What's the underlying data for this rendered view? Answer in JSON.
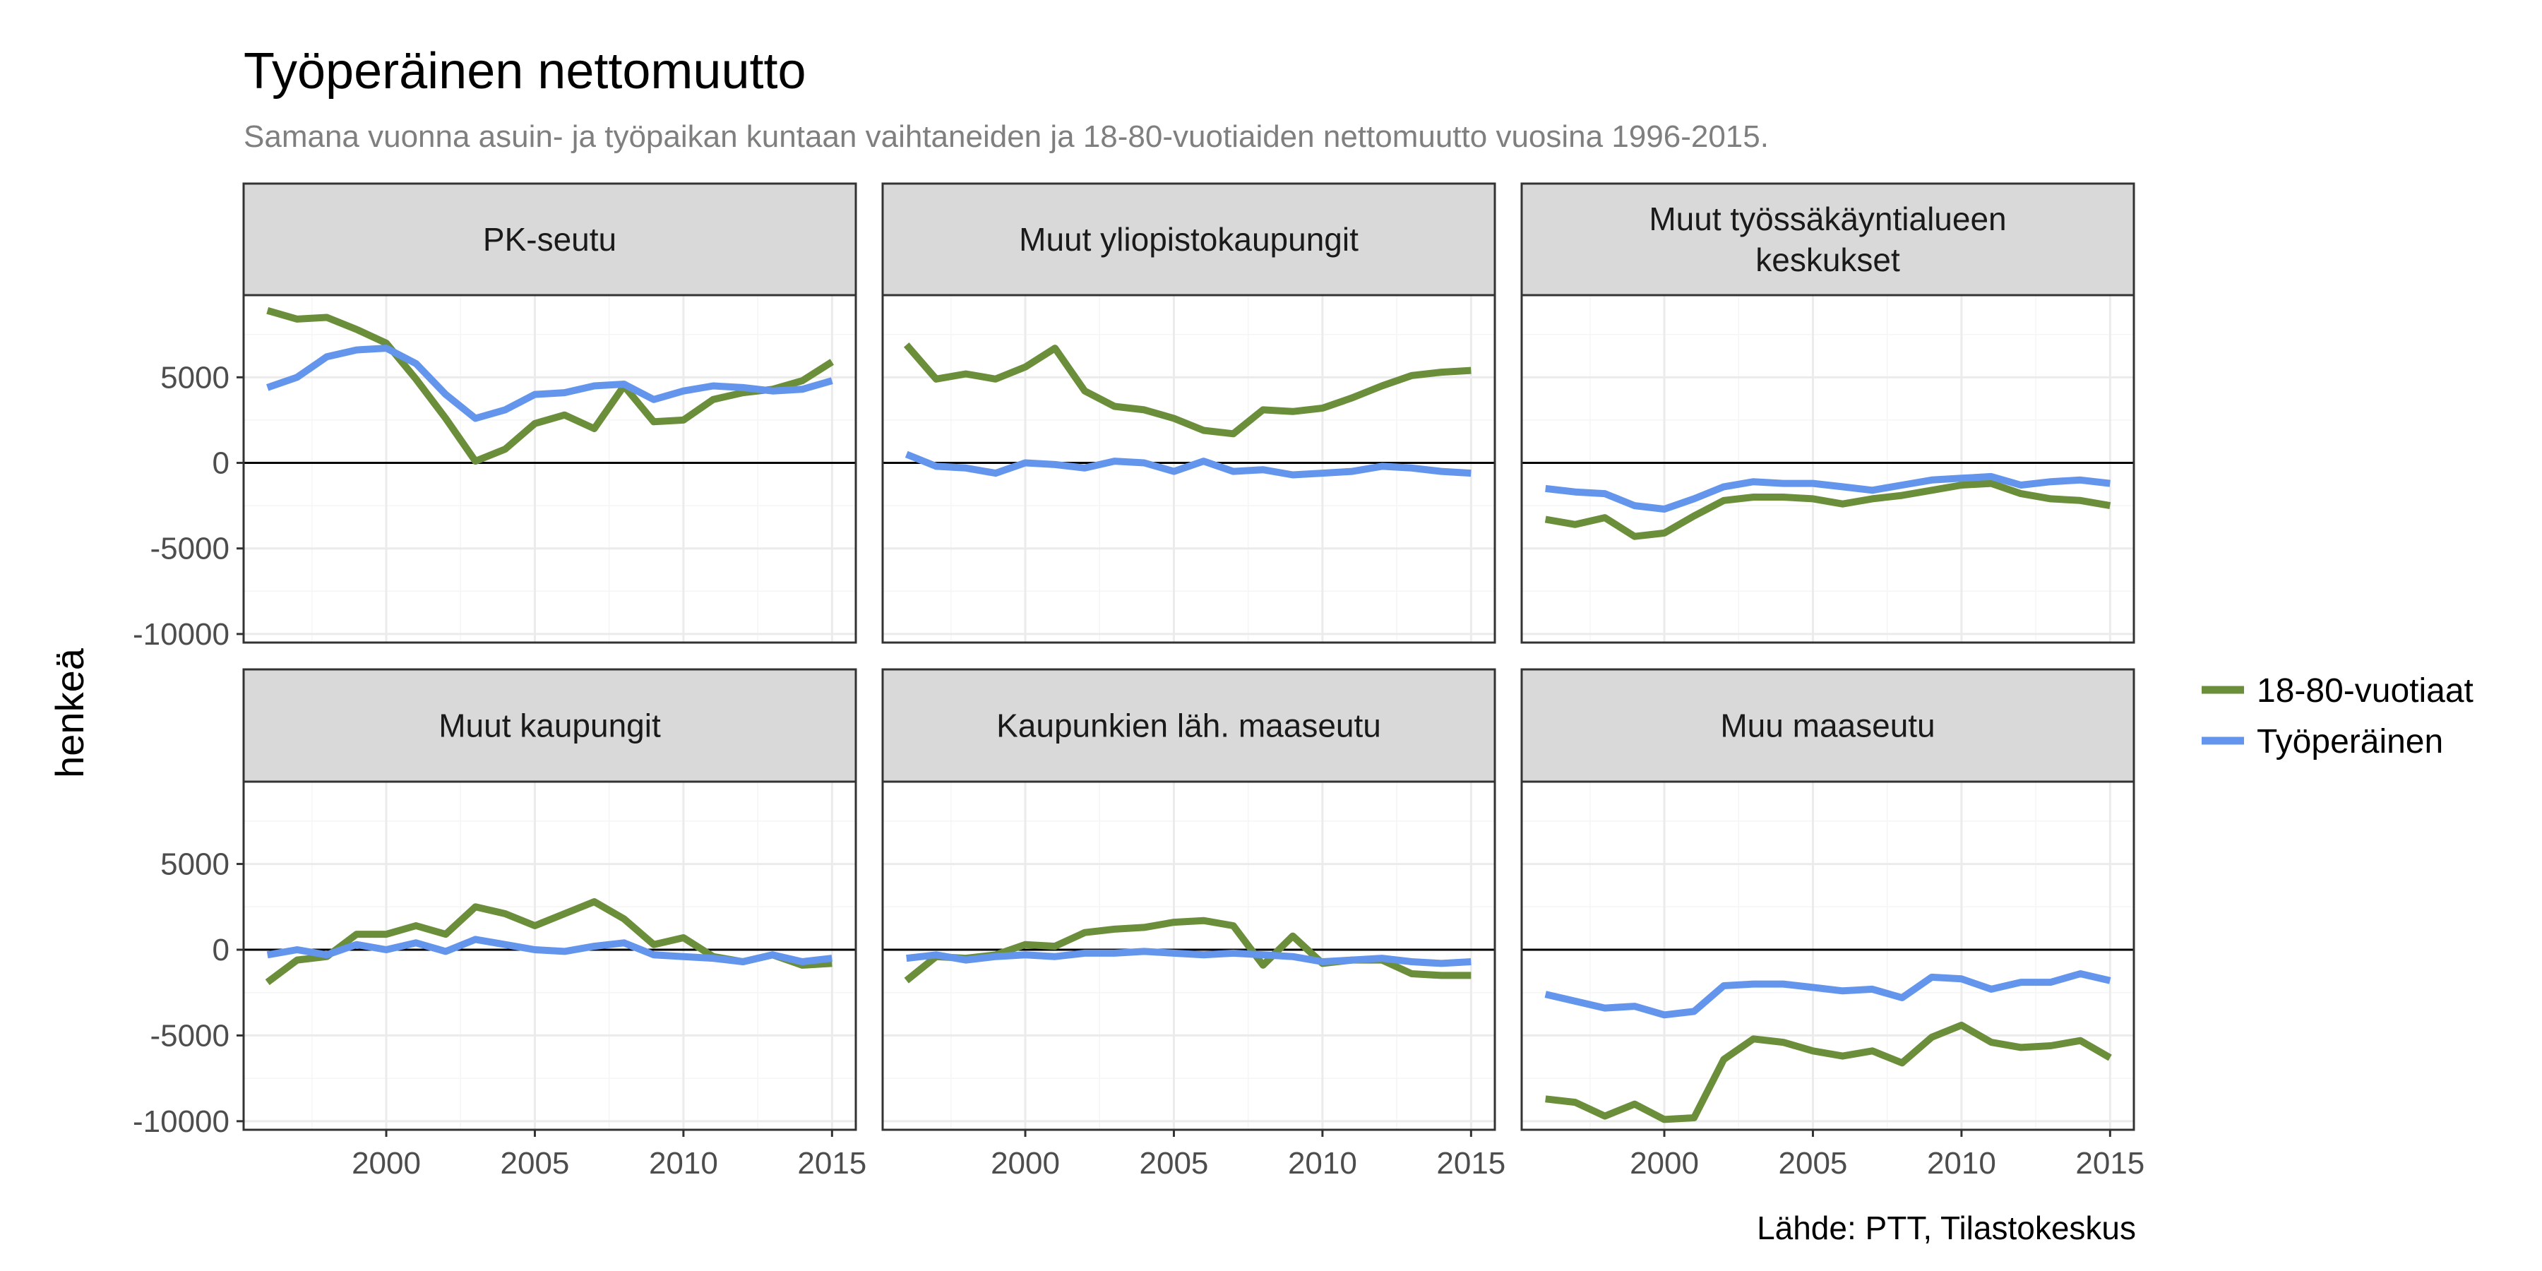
{
  "title": "Työperäinen nettomuutto",
  "subtitle": "Samana vuonna asuin- ja työpaikan kuntaan vaihtaneiden ja 18-80-vuotiaiden nettomuutto vuosina 1996-2015.",
  "ylabel": "henkeä",
  "caption": "Lähde: PTT, Tilastokeskus",
  "colors": {
    "18-80-vuotiaat": "#6b8e3a",
    "Työperäinen": "#6495ed"
  },
  "chart_data": {
    "type": "line",
    "title": "Työperäinen nettomuutto",
    "ylabel": "henkeä",
    "xlabel": "",
    "x": [
      1996,
      1997,
      1998,
      1999,
      2000,
      2001,
      2002,
      2003,
      2004,
      2005,
      2006,
      2007,
      2008,
      2009,
      2010,
      2011,
      2012,
      2013,
      2014,
      2015
    ],
    "xlim": [
      1995.2,
      2015.8
    ],
    "ylim": [
      -10500,
      9800
    ],
    "x_ticks": [
      2000,
      2005,
      2010,
      2015
    ],
    "y_ticks": [
      -10000,
      -5000,
      0,
      5000
    ],
    "grid": true,
    "legend_position": "right",
    "series_names": [
      "18-80-vuotiaat",
      "Työperäinen"
    ],
    "panels": [
      {
        "label": "PK-seutu",
        "series": [
          {
            "name": "18-80-vuotiaat",
            "values": [
              8900,
              8400,
              8500,
              7800,
              7000,
              4900,
              2600,
              100,
              800,
              2300,
              2800,
              2000,
              4500,
              2400,
              2500,
              3700,
              4100,
              4300,
              4800,
              5900
            ]
          },
          {
            "name": "Työperäinen",
            "values": [
              4400,
              5000,
              6200,
              6600,
              6700,
              5800,
              4000,
              2600,
              3100,
              4000,
              4100,
              4500,
              4600,
              3700,
              4200,
              4500,
              4400,
              4200,
              4300,
              4800
            ]
          }
        ]
      },
      {
        "label": "Muut yliopistokaupungit",
        "series": [
          {
            "name": "18-80-vuotiaat",
            "values": [
              6900,
              4900,
              5200,
              4900,
              5600,
              6700,
              4200,
              3300,
              3100,
              2600,
              1900,
              1700,
              3100,
              3000,
              3200,
              3800,
              4500,
              5100,
              5300,
              5400
            ]
          },
          {
            "name": "Työperäinen",
            "values": [
              500,
              -200,
              -300,
              -600,
              0,
              -100,
              -300,
              100,
              0,
              -500,
              100,
              -500,
              -400,
              -700,
              -600,
              -500,
              -200,
              -300,
              -500,
              -600
            ]
          }
        ]
      },
      {
        "label": "Muut työssäkäyntialueen keskukset",
        "series": [
          {
            "name": "18-80-vuotiaat",
            "values": [
              -3300,
              -3600,
              -3200,
              -4300,
              -4100,
              -3100,
              -2200,
              -2000,
              -2000,
              -2100,
              -2400,
              -2100,
              -1900,
              -1600,
              -1300,
              -1200,
              -1800,
              -2100,
              -2200,
              -2500
            ]
          },
          {
            "name": "Työperäinen",
            "values": [
              -1500,
              -1700,
              -1800,
              -2500,
              -2700,
              -2100,
              -1400,
              -1100,
              -1200,
              -1200,
              -1400,
              -1600,
              -1300,
              -1000,
              -900,
              -800,
              -1300,
              -1100,
              -1000,
              -1200
            ]
          }
        ]
      },
      {
        "label": "Muut kaupungit",
        "series": [
          {
            "name": "18-80-vuotiaat",
            "values": [
              -1900,
              -600,
              -400,
              900,
              900,
              1400,
              900,
              2500,
              2100,
              1400,
              2100,
              2800,
              1800,
              300,
              700,
              -400,
              -700,
              -300,
              -900,
              -800
            ]
          },
          {
            "name": "Työperäinen",
            "values": [
              -300,
              0,
              -300,
              300,
              0,
              400,
              -100,
              600,
              300,
              0,
              -100,
              200,
              400,
              -300,
              -400,
              -500,
              -700,
              -300,
              -700,
              -500
            ]
          }
        ]
      },
      {
        "label": "Kaupunkien läh. maaseutu",
        "series": [
          {
            "name": "18-80-vuotiaat",
            "values": [
              -1800,
              -400,
              -500,
              -300,
              300,
              200,
              1000,
              1200,
              1300,
              1600,
              1700,
              1400,
              -900,
              800,
              -800,
              -600,
              -600,
              -1400,
              -1500,
              -1500
            ]
          },
          {
            "name": "Työperäinen",
            "values": [
              -500,
              -300,
              -600,
              -400,
              -300,
              -400,
              -200,
              -200,
              -100,
              -200,
              -300,
              -200,
              -300,
              -400,
              -700,
              -600,
              -500,
              -700,
              -800,
              -700
            ]
          }
        ]
      },
      {
        "label": "Muu maaseutu",
        "series": [
          {
            "name": "18-80-vuotiaat",
            "values": [
              -8700,
              -8900,
              -9700,
              -9000,
              -9900,
              -9800,
              -6400,
              -5200,
              -5400,
              -5900,
              -6200,
              -5900,
              -6600,
              -5100,
              -4400,
              -5400,
              -5700,
              -5600,
              -5300,
              -6300
            ]
          },
          {
            "name": "Työperäinen",
            "values": [
              -2600,
              -3000,
              -3400,
              -3300,
              -3800,
              -3600,
              -2100,
              -2000,
              -2000,
              -2200,
              -2400,
              -2300,
              -2800,
              -1600,
              -1700,
              -2300,
              -1900,
              -1900,
              -1400,
              -1800
            ]
          }
        ]
      }
    ]
  }
}
